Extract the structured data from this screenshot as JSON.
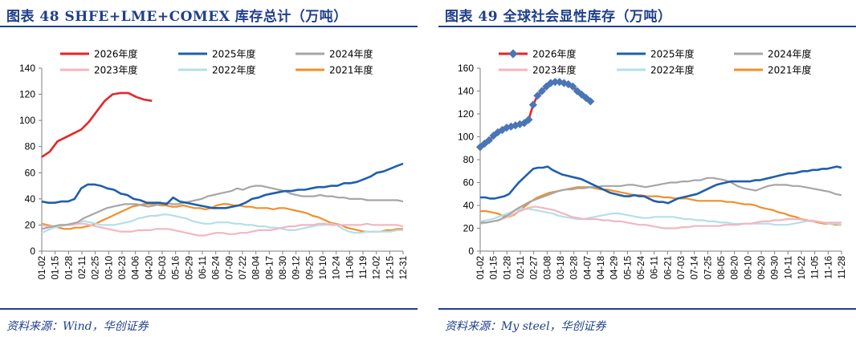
{
  "panels": [
    {
      "title": "图表 48 SHFE+LME+COMEX 库存总计（万吨）",
      "source": "资料来源：Wind，华创证券"
    },
    {
      "title": "图表 49 全球社会显性库存（万吨）",
      "source": "资料来源：My steel，华创证券"
    }
  ],
  "chart_data": [
    {
      "type": "line",
      "ylim": [
        0,
        140
      ],
      "y_ticks": [
        0,
        20,
        40,
        60,
        80,
        100,
        120,
        140
      ],
      "x_tick_labels": [
        "01-02",
        "01-15",
        "01-28",
        "02-11",
        "02-25",
        "03-10",
        "03-23",
        "04-06",
        "04-20",
        "05-03",
        "05-16",
        "05-29",
        "06-11",
        "06-24",
        "07-09",
        "07-22",
        "08-04",
        "08-17",
        "08-30",
        "09-12",
        "09-25",
        "10-10",
        "10-24",
        "11-06",
        "11-19",
        "12-02",
        "12-15",
        "12-31"
      ],
      "legend_position": "top",
      "series": [
        {
          "name": "2026年度",
          "color": "#e3262a",
          "values": [
            72,
            76,
            84,
            87,
            90,
            93,
            99,
            107,
            115,
            120,
            121,
            121,
            118,
            116,
            115
          ]
        },
        {
          "name": "2025年度",
          "color": "#1f5fad",
          "values": [
            38,
            37,
            37,
            38,
            38,
            40,
            48,
            51,
            51,
            50,
            48,
            47,
            44,
            43,
            40,
            39,
            37,
            37,
            37,
            36,
            41,
            38,
            37,
            36,
            35,
            34,
            33,
            33,
            33,
            34,
            35,
            37,
            40,
            41,
            43,
            44,
            45,
            46,
            46,
            47,
            47,
            48,
            49,
            49,
            50,
            50,
            52,
            52,
            53,
            55,
            57,
            60,
            61,
            63,
            65,
            67
          ]
        },
        {
          "name": "2024年度",
          "color": "#a6a6a6",
          "values": [
            17,
            18,
            19,
            20,
            20,
            21,
            22,
            25,
            27,
            29,
            31,
            33,
            34,
            35,
            36,
            36,
            36,
            35,
            34,
            35,
            36,
            37,
            36,
            36,
            37,
            38,
            39,
            40,
            42,
            43,
            44,
            45,
            46,
            48,
            47,
            49,
            50,
            50,
            49,
            48,
            47,
            46,
            44,
            43,
            42,
            42,
            42,
            43,
            42,
            42,
            41,
            41,
            40,
            40,
            40,
            39,
            39,
            39,
            39,
            39,
            39,
            38
          ]
        },
        {
          "name": "2023年度",
          "color": "#f2b6c2",
          "values": [
            20,
            19,
            19,
            20,
            20,
            20,
            21,
            21,
            20,
            19,
            18,
            17,
            16,
            15,
            15,
            15,
            16,
            16,
            16,
            17,
            17,
            17,
            16,
            15,
            14,
            13,
            12,
            12,
            13,
            14,
            14,
            13,
            13,
            14,
            14,
            15,
            16,
            16,
            16,
            17,
            18,
            19,
            19,
            20,
            20,
            20,
            21,
            21,
            20,
            20,
            20,
            20,
            20,
            20,
            21,
            20,
            20,
            20,
            20,
            20,
            19
          ]
        },
        {
          "name": "2022年度",
          "color": "#b4dfe8",
          "values": [
            14,
            16,
            18,
            19,
            20,
            21,
            22,
            23,
            22,
            21,
            20,
            20,
            20,
            21,
            22,
            23,
            25,
            26,
            27,
            27,
            28,
            28,
            27,
            26,
            25,
            23,
            22,
            21,
            21,
            22,
            22,
            22,
            21,
            21,
            20,
            20,
            19,
            19,
            18,
            18,
            17,
            16,
            16,
            17,
            18,
            19,
            20,
            20,
            21,
            20,
            17,
            15,
            14,
            14,
            15,
            15,
            15,
            15,
            15,
            16,
            16
          ]
        },
        {
          "name": "2021年度",
          "color": "#f0902a",
          "values": [
            21,
            20,
            19,
            18,
            17,
            17,
            18,
            18,
            19,
            20,
            22,
            24,
            26,
            28,
            30,
            32,
            34,
            35,
            36,
            36,
            36,
            35,
            35,
            34,
            34,
            35,
            34,
            33,
            33,
            32,
            33,
            35,
            36,
            36,
            35,
            35,
            34,
            34,
            33,
            33,
            33,
            32,
            33,
            33,
            32,
            31,
            30,
            29,
            27,
            26,
            24,
            22,
            21,
            20,
            18,
            17,
            16,
            15,
            15,
            15,
            15,
            16,
            16,
            17,
            17
          ]
        }
      ]
    },
    {
      "type": "line",
      "ylim": [
        0,
        160
      ],
      "y_ticks": [
        0,
        20,
        40,
        60,
        80,
        100,
        120,
        140,
        160
      ],
      "x_tick_labels": [
        "01-02",
        "01-15",
        "01-28",
        "02-11",
        "02-27",
        "03-08",
        "03-18",
        "03-28",
        "04-07",
        "04-18",
        "04-29",
        "05-15",
        "05-24",
        "06-11",
        "06-21",
        "07-03",
        "07-14",
        "07-25",
        "08-05",
        "08-20",
        "09-10",
        "09-20",
        "09-30",
        "10-11",
        "10-22",
        "11-05",
        "11-16",
        "11-28"
      ],
      "legend_position": "top",
      "series": [
        {
          "name": "2026年度",
          "color": "#e3262a",
          "marker_color": "#4a76b8",
          "values": [
            91,
            94,
            97,
            101,
            104,
            106,
            108,
            109,
            110,
            111,
            112,
            115,
            128,
            136,
            140,
            144,
            147,
            148,
            148,
            147,
            146,
            144,
            140,
            137,
            134,
            131
          ]
        },
        {
          "name": "2025年度",
          "color": "#1f5fad",
          "values": [
            47,
            47,
            46,
            46,
            47,
            48,
            50,
            55,
            60,
            64,
            68,
            72,
            73,
            73,
            74,
            71,
            69,
            67,
            66,
            65,
            64,
            63,
            61,
            59,
            57,
            55,
            53,
            51,
            50,
            49,
            48,
            48,
            49,
            48,
            48,
            46,
            44,
            43,
            43,
            42,
            44,
            46,
            47,
            48,
            49,
            50,
            52,
            54,
            56,
            58,
            59,
            60,
            61,
            61,
            61,
            61,
            61,
            62,
            62,
            63,
            64,
            65,
            66,
            67,
            68,
            68,
            69,
            70,
            70,
            71,
            71,
            72,
            72,
            73,
            74,
            73
          ]
        },
        {
          "name": "2024年度",
          "color": "#a6a6a6",
          "values": [
            25,
            25,
            26,
            27,
            30,
            33,
            37,
            40,
            43,
            45,
            47,
            49,
            51,
            53,
            54,
            54,
            55,
            55,
            56,
            56,
            57,
            57,
            57,
            57,
            58,
            58,
            57,
            56,
            57,
            58,
            59,
            60,
            60,
            61,
            61,
            62,
            62,
            64,
            64,
            63,
            62,
            60,
            57,
            55,
            54,
            53,
            55,
            57,
            58,
            58,
            58,
            57,
            57,
            56,
            55,
            54,
            53,
            52,
            50,
            49
          ]
        },
        {
          "name": "2023年度",
          "color": "#f2b6c2",
          "values": [
            24,
            25,
            26,
            27,
            29,
            31,
            34,
            36,
            38,
            39,
            38,
            37,
            36,
            34,
            32,
            30,
            29,
            28,
            28,
            28,
            27,
            27,
            26,
            26,
            25,
            24,
            23,
            23,
            22,
            21,
            20,
            20,
            20,
            21,
            21,
            22,
            22,
            22,
            22,
            22,
            23,
            23,
            23,
            24,
            24,
            25,
            26,
            26,
            27,
            27,
            28,
            28,
            28,
            27,
            26,
            26,
            25,
            25,
            25,
            25
          ]
        },
        {
          "name": "2022年度",
          "color": "#b4dfe8",
          "values": [
            26,
            27,
            28,
            30,
            32,
            34,
            36,
            37,
            37,
            36,
            35,
            34,
            33,
            31,
            30,
            29,
            28,
            28,
            29,
            30,
            31,
            32,
            33,
            33,
            32,
            31,
            30,
            29,
            29,
            30,
            30,
            30,
            30,
            29,
            28,
            28,
            27,
            27,
            26,
            26,
            25,
            25,
            24,
            24,
            24,
            24,
            24,
            24,
            24,
            23,
            23,
            23,
            24,
            25,
            26,
            27,
            26,
            25,
            24,
            24,
            23
          ]
        },
        {
          "name": "2021年度",
          "color": "#f0902a",
          "values": [
            35,
            35,
            34,
            33,
            31,
            30,
            32,
            36,
            40,
            44,
            47,
            49,
            51,
            52,
            53,
            54,
            55,
            56,
            56,
            56,
            55,
            54,
            54,
            53,
            52,
            51,
            50,
            49,
            49,
            48,
            48,
            48,
            47,
            47,
            46,
            46,
            46,
            45,
            44,
            44,
            44,
            44,
            44,
            43,
            43,
            42,
            41,
            41,
            40,
            38,
            37,
            36,
            34,
            33,
            31,
            30,
            28,
            27,
            26,
            25,
            24,
            24,
            23,
            23
          ]
        }
      ]
    }
  ]
}
